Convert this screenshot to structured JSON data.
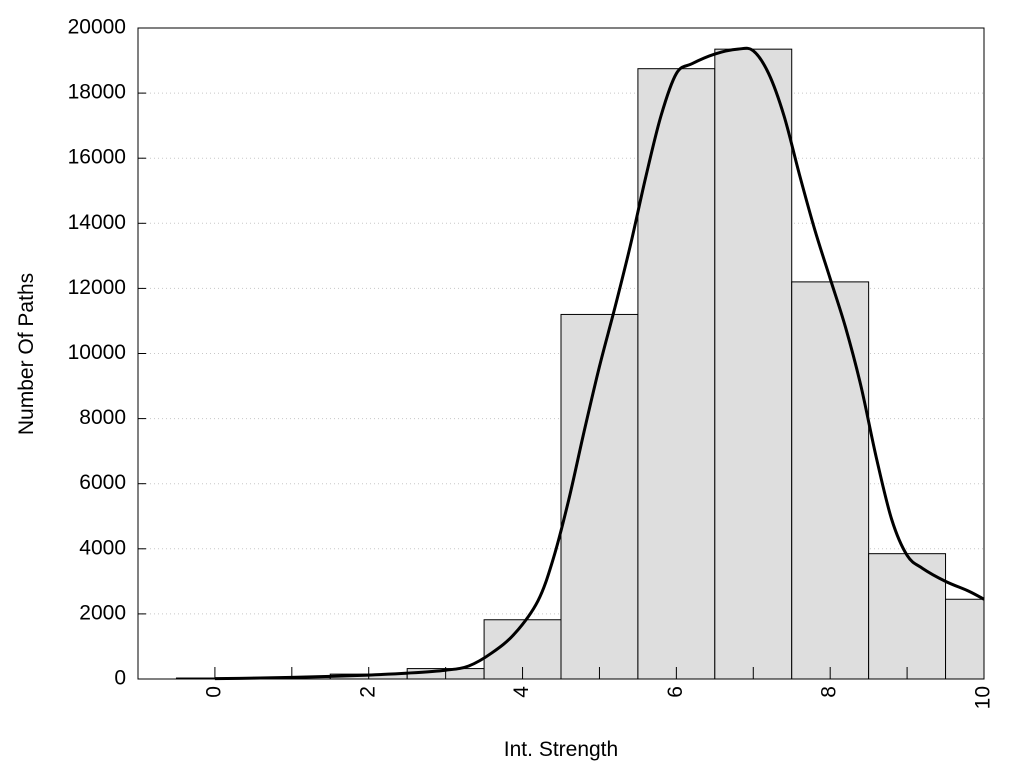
{
  "chart_data": {
    "type": "bar",
    "title": "",
    "xlabel": "Int. Strength",
    "ylabel": "Number Of Paths",
    "xlim": [
      -1,
      10
    ],
    "ylim": [
      0,
      20000
    ],
    "x_ticks": [
      0,
      2,
      4,
      6,
      8,
      10
    ],
    "y_ticks": [
      0,
      2000,
      4000,
      6000,
      8000,
      10000,
      12000,
      14000,
      16000,
      18000,
      20000
    ],
    "grid": "horizontal dotted",
    "legend": "none",
    "bars": {
      "x": [
        0,
        1,
        2,
        3,
        4,
        5,
        6,
        7,
        8,
        9,
        10
      ],
      "values": [
        30,
        50,
        150,
        320,
        1820,
        11200,
        18750,
        19350,
        12200,
        3850,
        2450
      ],
      "color": "#dedede",
      "edge_color": "#000000"
    },
    "curve": {
      "x": [
        0,
        0.5,
        1,
        1.5,
        2,
        2.5,
        3,
        3.3,
        3.6,
        3.9,
        4.2,
        4.4,
        4.6,
        4.8,
        5.0,
        5.2,
        5.4,
        5.6,
        5.8,
        6.0,
        6.2,
        6.5,
        6.8,
        7.0,
        7.2,
        7.4,
        7.6,
        7.8,
        8.0,
        8.2,
        8.4,
        8.6,
        8.8,
        9.0,
        9.2,
        9.5,
        9.8,
        10.0
      ],
      "y": [
        10,
        25,
        50,
        80,
        120,
        180,
        270,
        400,
        800,
        1400,
        2400,
        3700,
        5500,
        7600,
        9600,
        11400,
        13300,
        15400,
        17300,
        18600,
        18900,
        19200,
        19350,
        19300,
        18600,
        17300,
        15500,
        13800,
        12300,
        10800,
        9000,
        6800,
        4900,
        3800,
        3400,
        3000,
        2700,
        2450
      ],
      "color": "#000000"
    }
  }
}
